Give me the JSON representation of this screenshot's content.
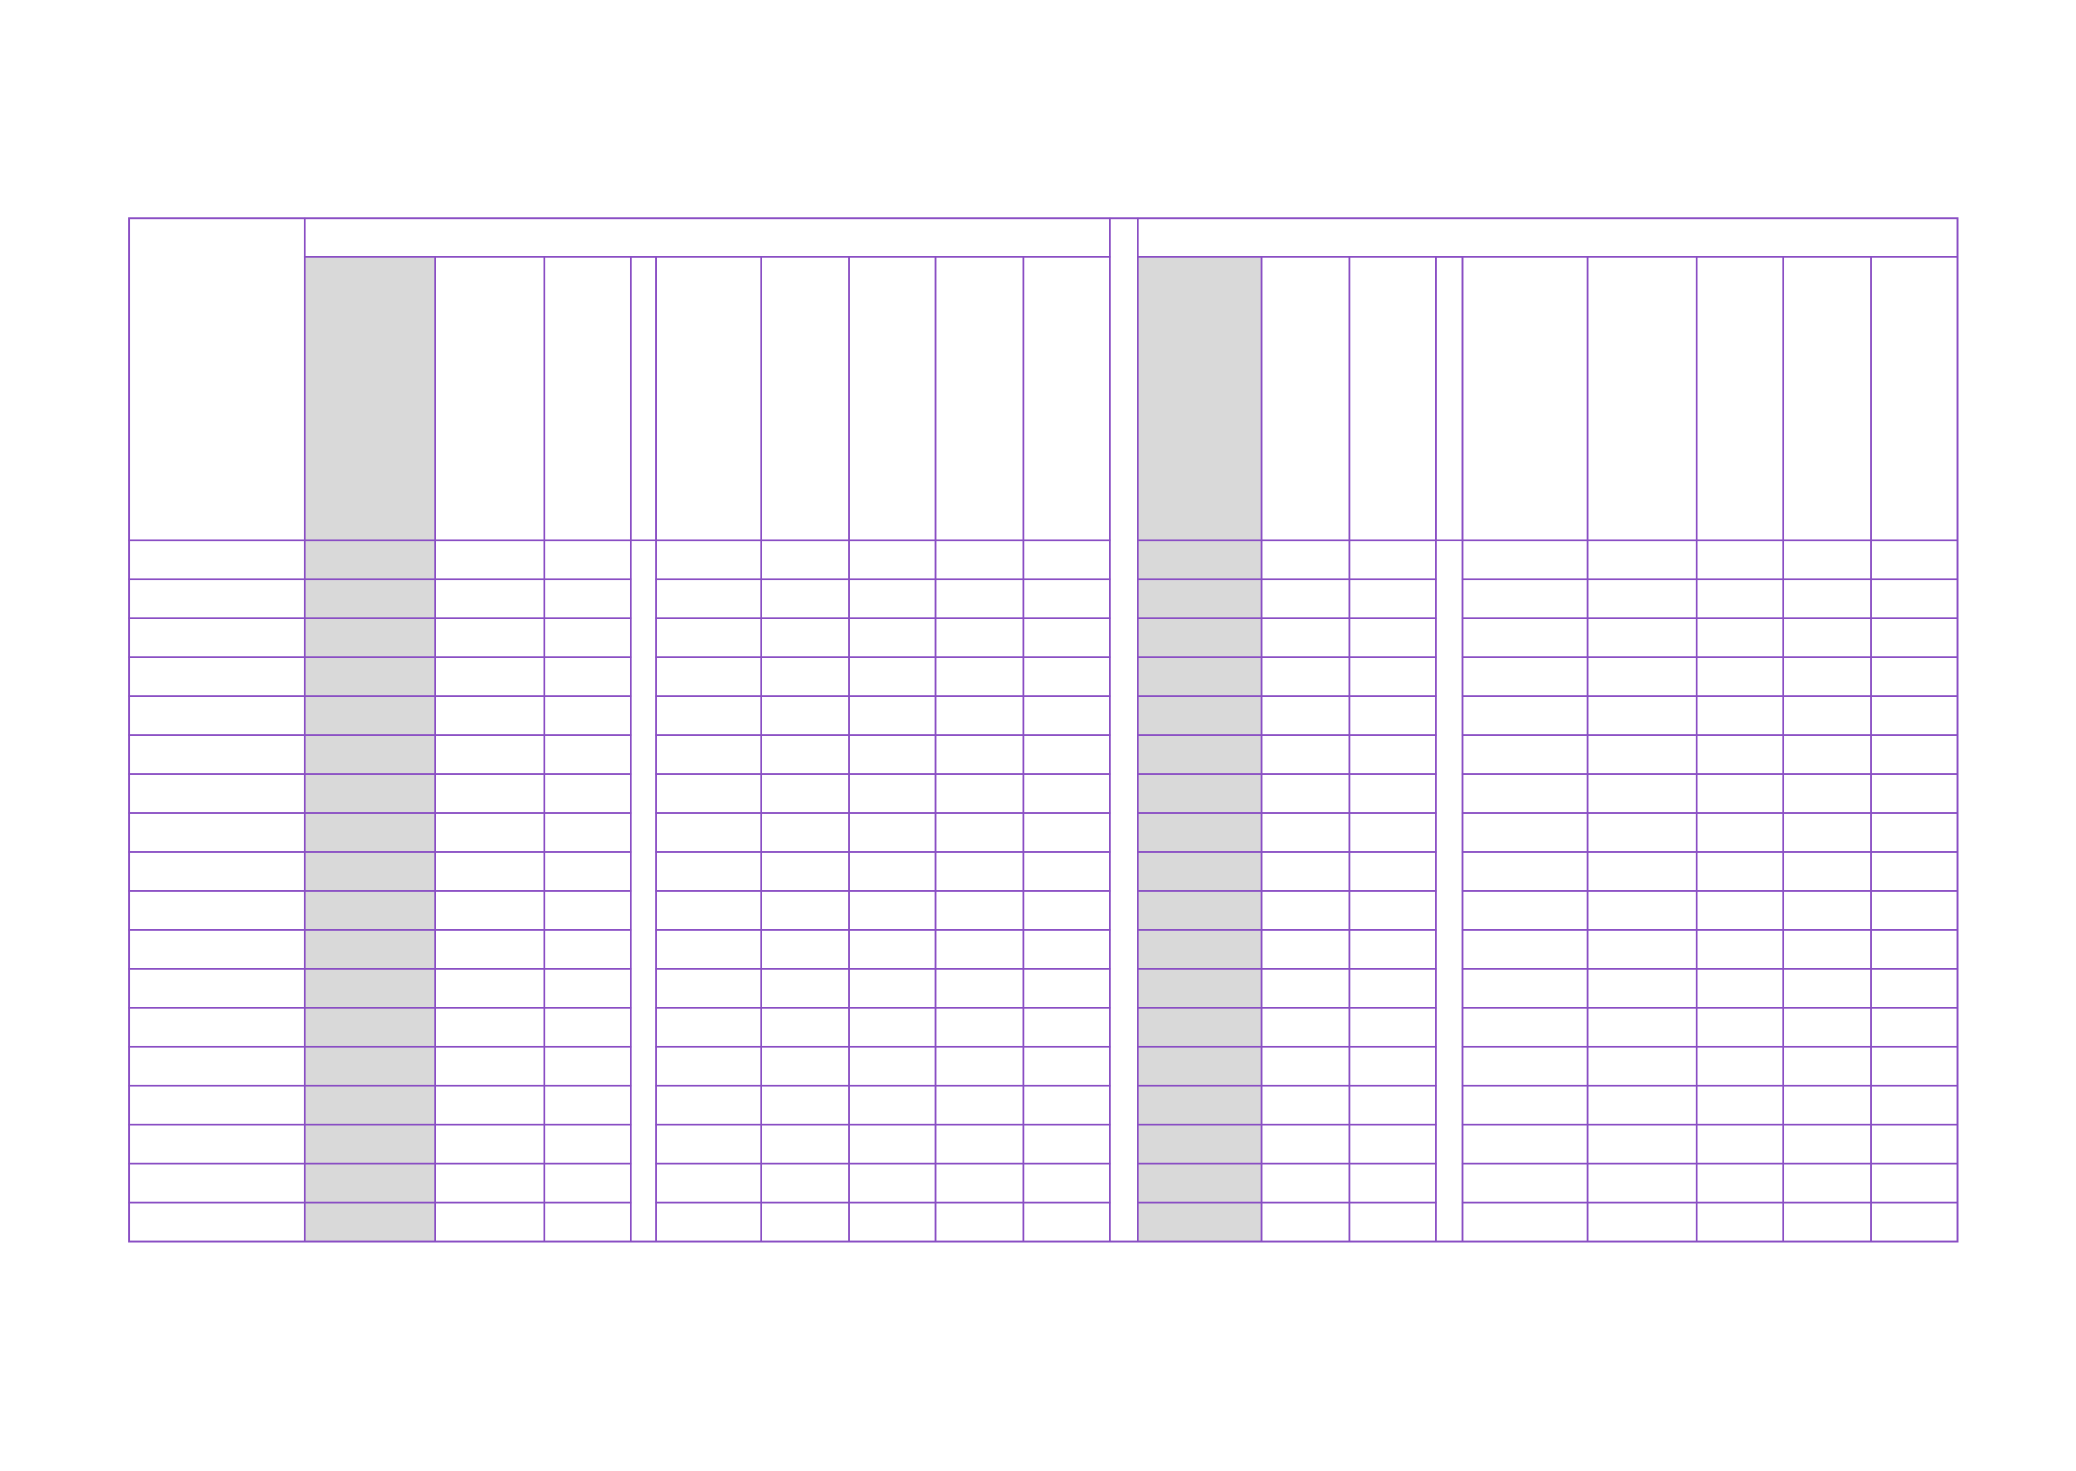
{
  "colors": {
    "border": "#8a4fc4",
    "shaded_column": "#d9d9d9",
    "background": "#ffffff"
  },
  "table": {
    "body_row_count": 18,
    "cells": "empty"
  }
}
